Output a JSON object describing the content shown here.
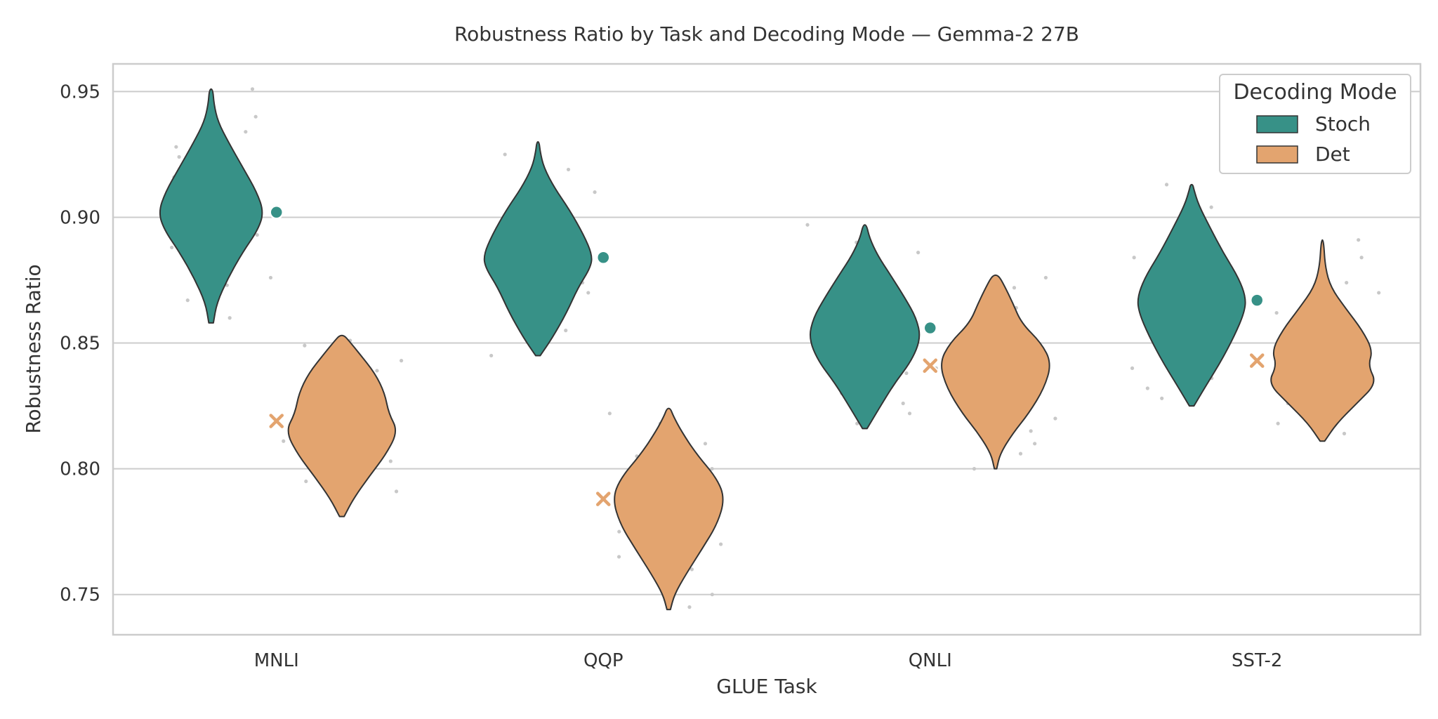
{
  "chart_data": {
    "type": "violin",
    "title": "Robustness Ratio by Task and Decoding Mode — Gemma-2 27B",
    "xlabel": "GLUE Task",
    "ylabel": "Robustness Ratio",
    "categories": [
      "MNLI",
      "QQP",
      "QNLI",
      "SST-2"
    ],
    "ylim": [
      0.734,
      0.961
    ],
    "yticks": [
      0.75,
      0.8,
      0.85,
      0.9,
      0.95
    ],
    "ytick_labels": [
      "0.75",
      "0.80",
      "0.85",
      "0.90",
      "0.95"
    ],
    "grid": "horizontal",
    "legend": {
      "title": "Decoding Mode",
      "placement": "top-right",
      "entries": [
        "Stoch",
        "Det"
      ]
    },
    "colors": {
      "Stoch": "#379187",
      "Det": "#e3a46f",
      "points": "#c8c8c8"
    },
    "series": [
      {
        "name": "Stoch",
        "marker": "circle",
        "violins": [
          {
            "category": "MNLI",
            "min": 0.858,
            "max": 0.951,
            "center": 0.902,
            "profile": [
              [
                0.858,
                0.04
              ],
              [
                0.866,
                0.1
              ],
              [
                0.876,
                0.3
              ],
              [
                0.886,
                0.55
              ],
              [
                0.895,
                0.82
              ],
              [
                0.902,
                0.92
              ],
              [
                0.91,
                0.8
              ],
              [
                0.92,
                0.55
              ],
              [
                0.93,
                0.3
              ],
              [
                0.938,
                0.12
              ],
              [
                0.945,
                0.05
              ],
              [
                0.951,
                0.03
              ]
            ],
            "points": [
              0.86,
              0.867,
              0.873,
              0.876,
              0.88,
              0.884,
              0.888,
              0.893,
              0.897,
              0.9,
              0.904,
              0.908,
              0.912,
              0.916,
              0.92,
              0.924,
              0.928,
              0.934,
              0.94,
              0.951
            ]
          },
          {
            "category": "QQP",
            "min": 0.845,
            "max": 0.93,
            "center": 0.884,
            "profile": [
              [
                0.845,
                0.04
              ],
              [
                0.852,
                0.25
              ],
              [
                0.862,
                0.5
              ],
              [
                0.872,
                0.7
              ],
              [
                0.88,
                0.92
              ],
              [
                0.885,
                0.95
              ],
              [
                0.893,
                0.8
              ],
              [
                0.903,
                0.55
              ],
              [
                0.912,
                0.28
              ],
              [
                0.92,
                0.1
              ],
              [
                0.926,
                0.04
              ],
              [
                0.93,
                0.02
              ]
            ],
            "points": [
              0.845,
              0.85,
              0.855,
              0.858,
              0.862,
              0.866,
              0.87,
              0.874,
              0.878,
              0.882,
              0.886,
              0.89,
              0.894,
              0.898,
              0.902,
              0.906,
              0.91,
              0.914,
              0.919,
              0.925
            ]
          },
          {
            "category": "QNLI",
            "min": 0.816,
            "max": 0.897,
            "center": 0.856,
            "profile": [
              [
                0.816,
                0.04
              ],
              [
                0.824,
                0.25
              ],
              [
                0.834,
                0.52
              ],
              [
                0.843,
                0.82
              ],
              [
                0.852,
                0.98
              ],
              [
                0.86,
                0.9
              ],
              [
                0.868,
                0.7
              ],
              [
                0.877,
                0.45
              ],
              [
                0.885,
                0.22
              ],
              [
                0.892,
                0.08
              ],
              [
                0.897,
                0.03
              ]
            ],
            "points": [
              0.818,
              0.822,
              0.826,
              0.83,
              0.834,
              0.838,
              0.842,
              0.846,
              0.85,
              0.854,
              0.858,
              0.862,
              0.866,
              0.87,
              0.874,
              0.878,
              0.882,
              0.886,
              0.89,
              0.897
            ]
          },
          {
            "category": "SST-2",
            "min": 0.825,
            "max": 0.913,
            "center": 0.867,
            "profile": [
              [
                0.825,
                0.04
              ],
              [
                0.833,
                0.25
              ],
              [
                0.843,
                0.52
              ],
              [
                0.853,
                0.75
              ],
              [
                0.862,
                0.92
              ],
              [
                0.868,
                0.95
              ],
              [
                0.876,
                0.82
              ],
              [
                0.886,
                0.55
              ],
              [
                0.896,
                0.32
              ],
              [
                0.905,
                0.12
              ],
              [
                0.911,
                0.04
              ],
              [
                0.913,
                0.02
              ]
            ],
            "points": [
              0.828,
              0.832,
              0.836,
              0.84,
              0.844,
              0.848,
              0.852,
              0.856,
              0.86,
              0.864,
              0.868,
              0.872,
              0.876,
              0.88,
              0.884,
              0.888,
              0.892,
              0.898,
              0.904,
              0.913
            ]
          }
        ]
      },
      {
        "name": "Det",
        "marker": "x",
        "violins": [
          {
            "category": "MNLI",
            "min": 0.781,
            "max": 0.853,
            "center": 0.819,
            "profile": [
              [
                0.781,
                0.04
              ],
              [
                0.788,
                0.2
              ],
              [
                0.797,
                0.48
              ],
              [
                0.806,
                0.78
              ],
              [
                0.815,
                0.98
              ],
              [
                0.822,
                0.82
              ],
              [
                0.83,
                0.75
              ],
              [
                0.838,
                0.58
              ],
              [
                0.846,
                0.3
              ],
              [
                0.851,
                0.12
              ],
              [
                0.853,
                0.04
              ]
            ],
            "points": [
              0.787,
              0.791,
              0.795,
              0.799,
              0.803,
              0.807,
              0.811,
              0.815,
              0.819,
              0.823,
              0.827,
              0.831,
              0.835,
              0.839,
              0.843,
              0.846,
              0.849,
              0.851
            ]
          },
          {
            "category": "QQP",
            "min": 0.744,
            "max": 0.824,
            "center": 0.788,
            "profile": [
              [
                0.744,
                0.03
              ],
              [
                0.75,
                0.1
              ],
              [
                0.758,
                0.3
              ],
              [
                0.768,
                0.58
              ],
              [
                0.778,
                0.85
              ],
              [
                0.788,
                0.98
              ],
              [
                0.796,
                0.85
              ],
              [
                0.806,
                0.48
              ],
              [
                0.815,
                0.22
              ],
              [
                0.821,
                0.08
              ],
              [
                0.824,
                0.03
              ]
            ],
            "points": [
              0.745,
              0.75,
              0.755,
              0.76,
              0.765,
              0.77,
              0.775,
              0.78,
              0.785,
              0.79,
              0.795,
              0.8,
              0.805,
              0.81,
              0.814,
              0.818,
              0.822
            ]
          },
          {
            "category": "QNLI",
            "min": 0.8,
            "max": 0.877,
            "center": 0.841,
            "profile": [
              [
                0.8,
                0.02
              ],
              [
                0.806,
                0.08
              ],
              [
                0.814,
                0.3
              ],
              [
                0.822,
                0.58
              ],
              [
                0.832,
                0.85
              ],
              [
                0.842,
                0.98
              ],
              [
                0.85,
                0.8
              ],
              [
                0.858,
                0.45
              ],
              [
                0.866,
                0.3
              ],
              [
                0.873,
                0.15
              ],
              [
                0.877,
                0.05
              ]
            ],
            "points": [
              0.8,
              0.806,
              0.81,
              0.815,
              0.82,
              0.825,
              0.83,
              0.835,
              0.84,
              0.845,
              0.85,
              0.855,
              0.86,
              0.864,
              0.868,
              0.872,
              0.876
            ]
          },
          {
            "category": "SST-2",
            "min": 0.811,
            "max": 0.891,
            "center": 0.843,
            "profile": [
              [
                0.811,
                0.04
              ],
              [
                0.818,
                0.25
              ],
              [
                0.826,
                0.6
              ],
              [
                0.834,
                0.95
              ],
              [
                0.841,
                0.8
              ],
              [
                0.847,
                0.88
              ],
              [
                0.855,
                0.7
              ],
              [
                0.864,
                0.4
              ],
              [
                0.872,
                0.15
              ],
              [
                0.88,
                0.05
              ],
              [
                0.891,
                0.02
              ]
            ],
            "points": [
              0.814,
              0.818,
              0.822,
              0.826,
              0.83,
              0.834,
              0.838,
              0.842,
              0.846,
              0.85,
              0.854,
              0.858,
              0.862,
              0.866,
              0.87,
              0.874,
              0.878,
              0.884,
              0.891
            ]
          }
        ]
      }
    ]
  }
}
